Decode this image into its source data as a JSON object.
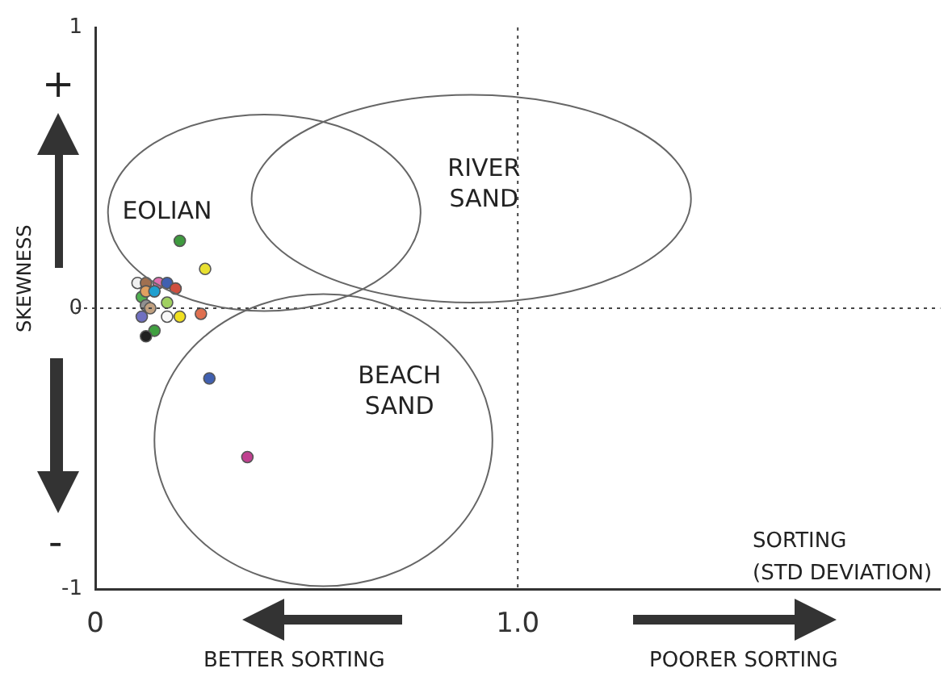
{
  "chart_data": {
    "type": "scatter",
    "xlabel": "SORTING (STD DEVIATION)",
    "ylabel": "SKEWNESS",
    "x": [
      0.2,
      0.26,
      0.1,
      0.12,
      0.15,
      0.17,
      0.19,
      0.11,
      0.12,
      0.14,
      0.12,
      0.13,
      0.17,
      0.11,
      0.17,
      0.2,
      0.25,
      0.14,
      0.12,
      0.27,
      0.36
    ],
    "values": [
      0.24,
      0.14,
      0.09,
      0.09,
      0.09,
      0.09,
      0.07,
      0.04,
      0.06,
      0.06,
      0.01,
      0.0,
      0.02,
      -0.03,
      -0.03,
      -0.03,
      -0.02,
      -0.08,
      -0.1,
      -0.25,
      -0.53
    ],
    "colors": [
      "#3f9a3f",
      "#e8e030",
      "#f0f0f0",
      "#a07050",
      "#e070b0",
      "#4060b0",
      "#d05040",
      "#50b050",
      "#e0a060",
      "#20a0d0",
      "#909090",
      "#c0a080",
      "#a0d060",
      "#7070c0",
      "#f8f8f8",
      "#f0e020",
      "#e07050",
      "#40a040",
      "#202020",
      "#4060b0",
      "#c04090"
    ],
    "xlim": [
      0,
      2.0
    ],
    "xticks": [
      0,
      {
        "value": 1,
        "label": "1.0"
      }
    ],
    "ylim": [
      -1,
      1
    ],
    "yticks": [
      -1,
      0,
      1
    ],
    "grid": false,
    "legend": false,
    "marker": "circle",
    "ref_lines": [
      {
        "axis": "x",
        "value": 1,
        "line_style": "dotted"
      },
      {
        "axis": "y",
        "value": 0,
        "line_style": "dotted"
      }
    ],
    "annotations": [
      "EOLIAN",
      "RIVER SAND",
      "BEACH SAND",
      "+",
      "-",
      "BETTER SORTING",
      "POORER SORTING"
    ]
  }
}
